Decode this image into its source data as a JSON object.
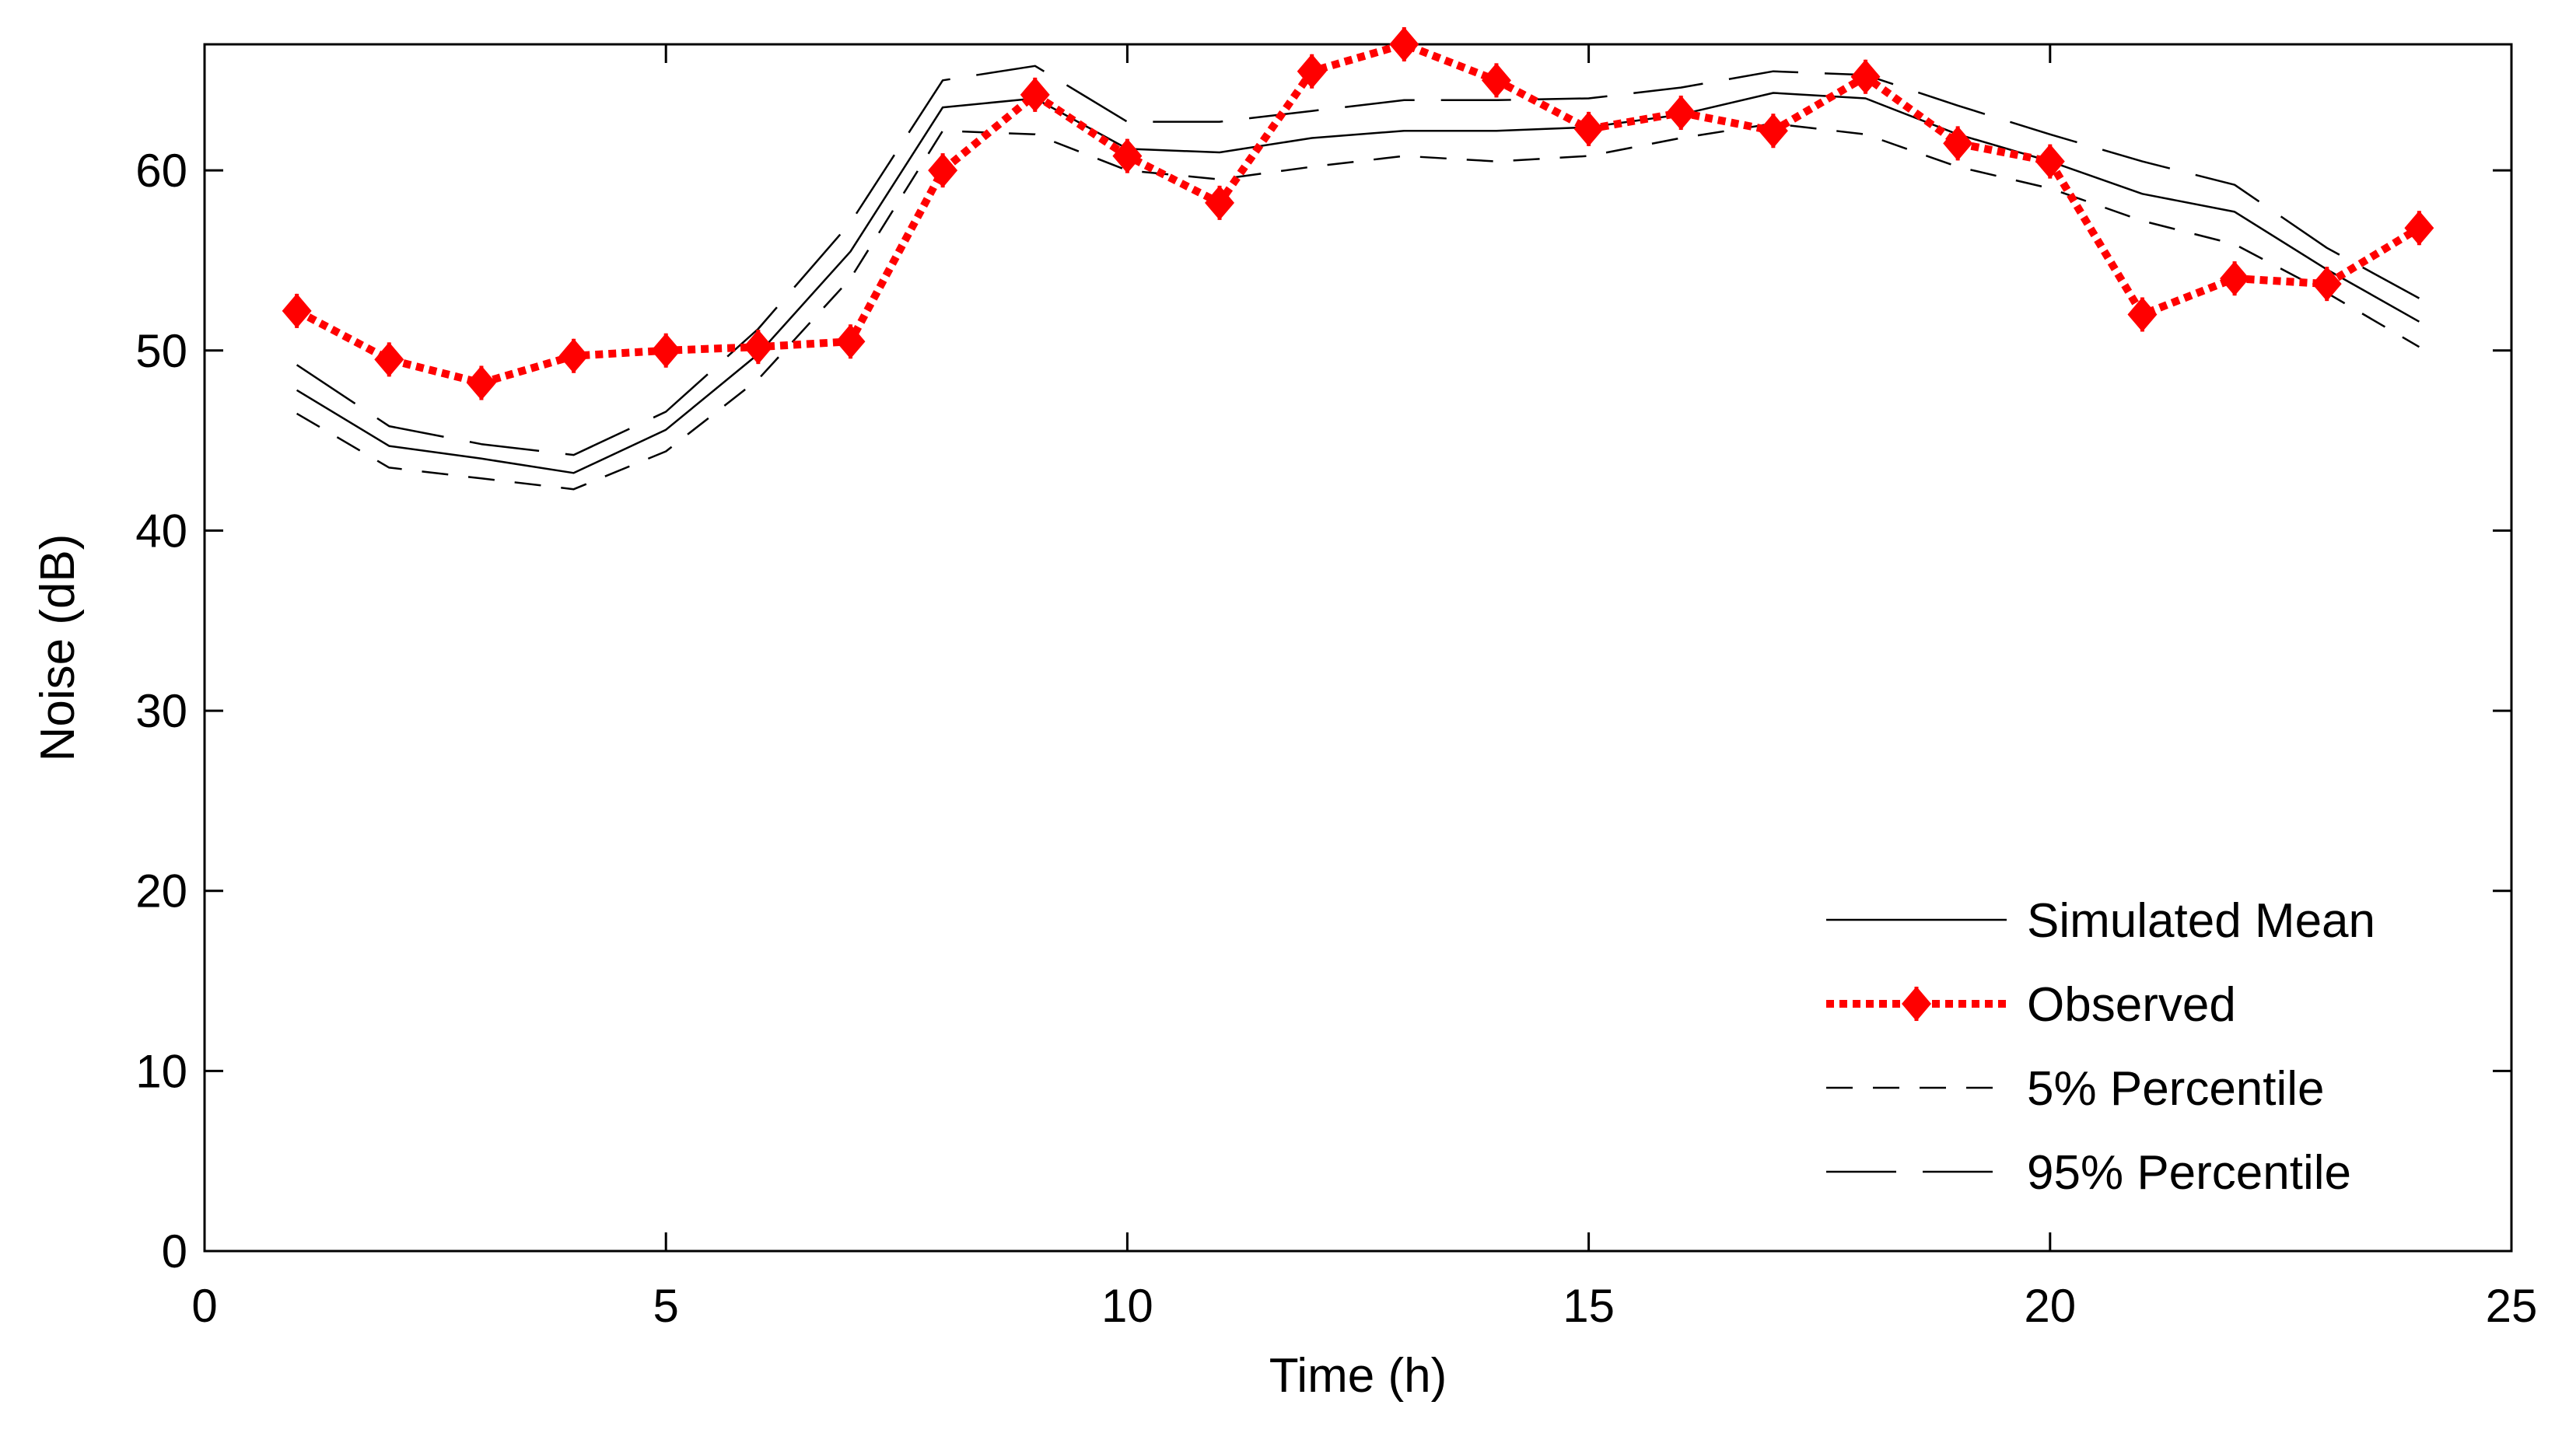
{
  "chart_data": {
    "type": "line",
    "title": "",
    "xlabel": "Time (h)",
    "ylabel": "Noise (dB)",
    "xlim": [
      0,
      25
    ],
    "ylim": [
      0,
      67
    ],
    "xticks": [
      0,
      5,
      10,
      15,
      20,
      25
    ],
    "yticks": [
      0,
      10,
      20,
      30,
      40,
      50,
      60
    ],
    "grid": false,
    "legend_position": "bottom-right",
    "x": [
      1,
      2,
      3,
      4,
      5,
      6,
      7,
      8,
      9,
      10,
      11,
      12,
      13,
      14,
      15,
      16,
      17,
      18,
      19,
      20,
      21,
      22,
      23,
      24
    ],
    "series": [
      {
        "name": "Simulated Mean",
        "style": "solid",
        "color": "#000000",
        "values": [
          47.8,
          44.7,
          44.0,
          43.2,
          45.6,
          49.8,
          55.5,
          63.5,
          64.0,
          61.2,
          61.0,
          61.8,
          62.2,
          62.2,
          62.4,
          63.1,
          64.3,
          64.0,
          62.0,
          60.5,
          58.7,
          57.7,
          54.5,
          51.6
        ]
      },
      {
        "name": "Observed",
        "style": "dotted-diamond",
        "color": "#ff0000",
        "values": [
          52.2,
          49.5,
          48.2,
          49.7,
          50.0,
          50.2,
          50.5,
          60.0,
          64.2,
          60.8,
          58.2,
          65.5,
          67.0,
          65.0,
          62.3,
          63.2,
          62.2,
          65.2,
          61.5,
          60.5,
          52.0,
          54.0,
          53.7,
          56.8
        ]
      },
      {
        "name": "5% Percentile",
        "style": "dashed",
        "color": "#000000",
        "values": [
          46.5,
          43.5,
          42.9,
          42.3,
          44.4,
          48.4,
          54.0,
          62.2,
          62.0,
          60.0,
          59.5,
          60.2,
          60.8,
          60.5,
          60.8,
          61.8,
          62.6,
          62.0,
          60.2,
          59.0,
          57.2,
          55.9,
          53.2,
          50.2
        ]
      },
      {
        "name": "95% Percentile",
        "style": "long-dash",
        "color": "#000000",
        "values": [
          49.2,
          45.8,
          44.8,
          44.2,
          46.6,
          51.2,
          57.1,
          65.0,
          65.8,
          62.7,
          62.7,
          63.3,
          63.9,
          63.9,
          64.0,
          64.6,
          65.5,
          65.3,
          63.6,
          62.0,
          60.5,
          59.2,
          55.7,
          52.9
        ]
      }
    ],
    "legend": [
      "Simulated Mean",
      "Observed",
      "5% Percentile",
      "95% Percentile"
    ]
  }
}
